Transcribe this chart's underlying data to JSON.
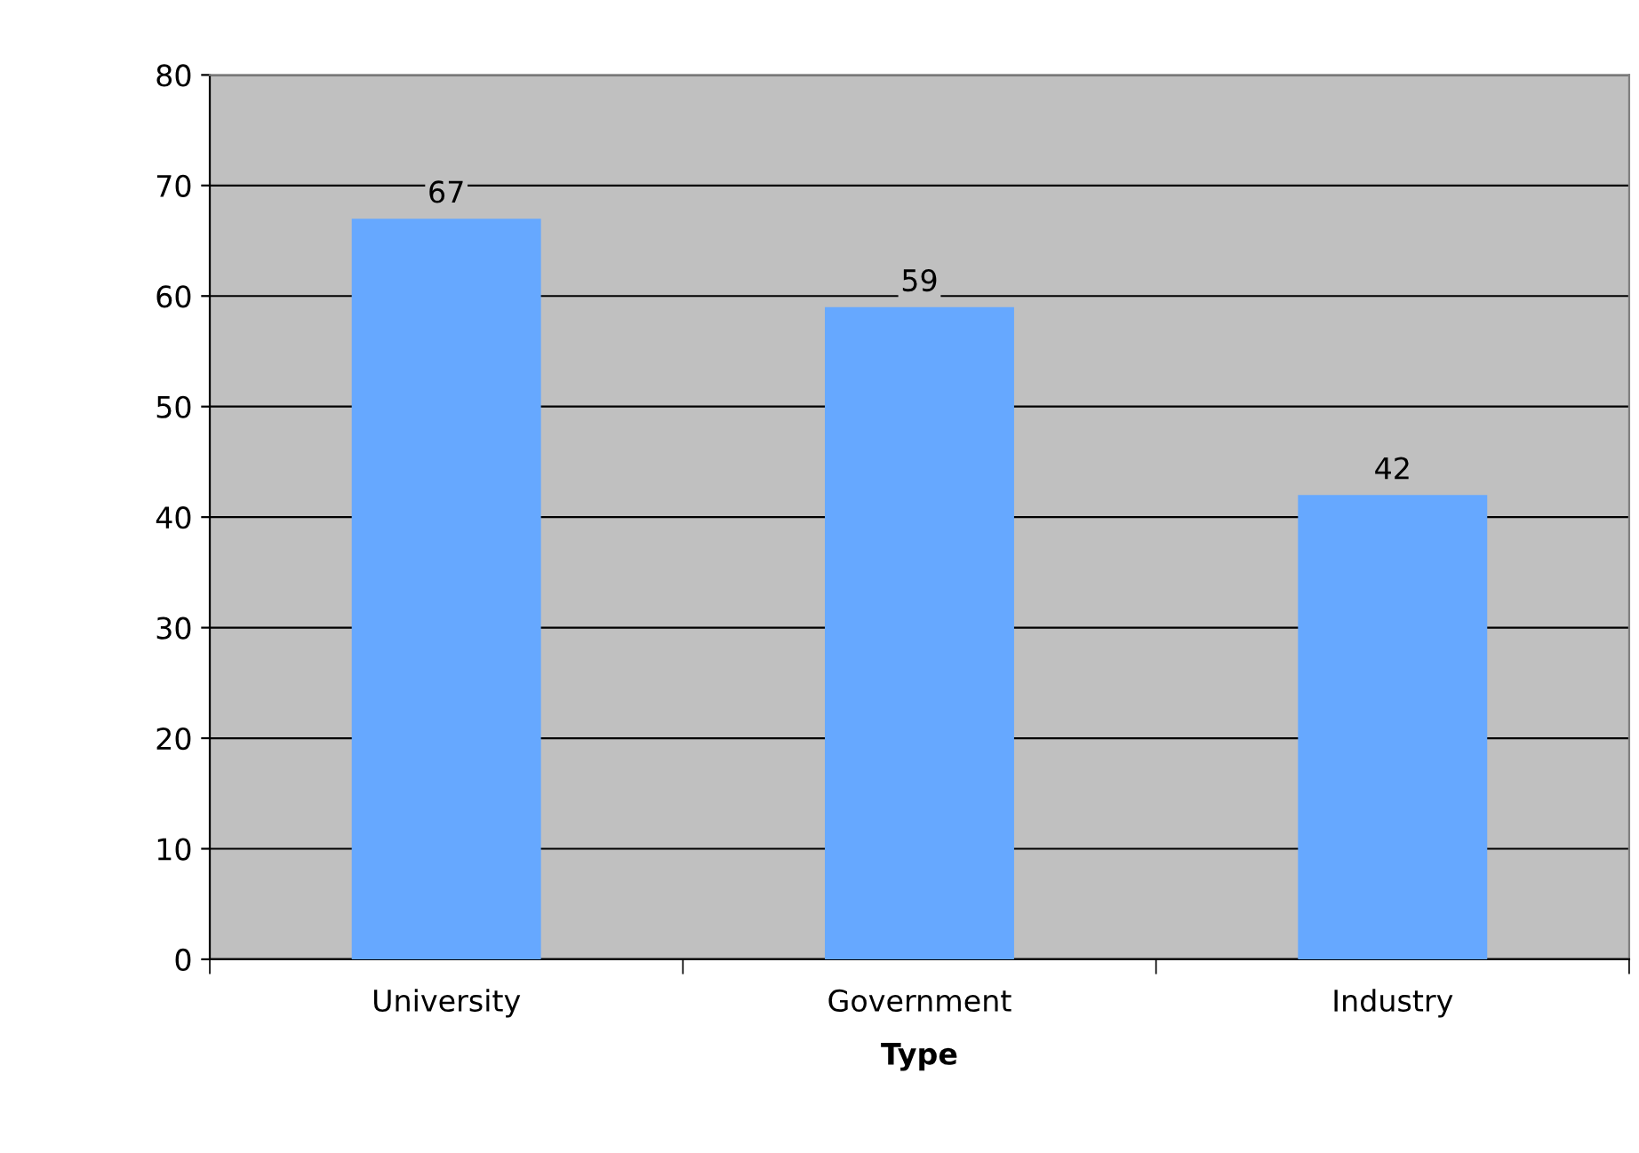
{
  "chart_data": {
    "type": "bar",
    "xlabel": "Type",
    "categories": [
      "University",
      "Government",
      "Industry"
    ],
    "values": [
      67,
      59,
      42
    ],
    "color": "#66a8ff",
    "ylim": [
      0,
      80
    ],
    "yticks": [
      0,
      10,
      20,
      30,
      40,
      50,
      60,
      70,
      80
    ],
    "grid": "y",
    "data_labels": true,
    "legend": false
  }
}
